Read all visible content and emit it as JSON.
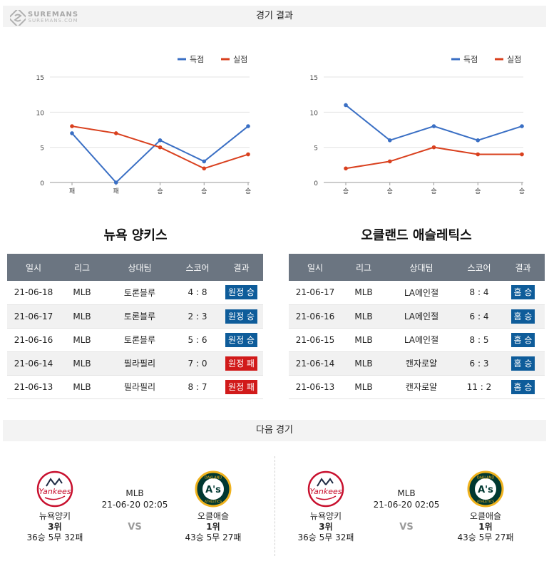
{
  "header": {
    "logo_main": "SUREMANS",
    "logo_sub": "SUREMANS.COM",
    "title": "경기 결과"
  },
  "legend": {
    "scored": "득점",
    "conceded": "실점"
  },
  "colors": {
    "scored": "#3a6fc4",
    "conceded": "#d9401e",
    "win": "#0e5c9a",
    "lose": "#d11a1a",
    "header": "#6b7581"
  },
  "chart_data": [
    {
      "type": "line",
      "categories": [
        "패",
        "패",
        "승",
        "승",
        "승"
      ],
      "series": [
        {
          "name": "득점",
          "values": [
            7,
            0,
            6,
            3,
            8
          ]
        },
        {
          "name": "실점",
          "values": [
            8,
            7,
            5,
            2,
            4
          ]
        }
      ],
      "yticks": [
        "0",
        "5",
        "10",
        "15"
      ],
      "ylim": [
        0,
        15
      ],
      "grid": true,
      "legend": "top-right"
    },
    {
      "type": "line",
      "categories": [
        "승",
        "승",
        "승",
        "승",
        "승"
      ],
      "series": [
        {
          "name": "득점",
          "values": [
            11,
            6,
            8,
            6,
            8
          ]
        },
        {
          "name": "실점",
          "values": [
            2,
            3,
            5,
            4,
            4
          ]
        }
      ],
      "yticks": [
        "0",
        "5",
        "10",
        "15"
      ],
      "ylim": [
        0,
        15
      ],
      "grid": true,
      "legend": "top-right"
    }
  ],
  "teams": {
    "left": {
      "name": "뉴욕 양키스",
      "columns": [
        "일시",
        "리그",
        "상대팀",
        "스코어",
        "결과"
      ],
      "rows": [
        {
          "date": "21-06-18",
          "league": "MLB",
          "opponent": "토론블루",
          "score": "4 : 8",
          "result": "원정 승",
          "type": "win"
        },
        {
          "date": "21-06-17",
          "league": "MLB",
          "opponent": "토론블루",
          "score": "2 : 3",
          "result": "원정 승",
          "type": "win"
        },
        {
          "date": "21-06-16",
          "league": "MLB",
          "opponent": "토론블루",
          "score": "5 : 6",
          "result": "원정 승",
          "type": "win"
        },
        {
          "date": "21-06-14",
          "league": "MLB",
          "opponent": "필라필리",
          "score": "7 : 0",
          "result": "원정 패",
          "type": "lose"
        },
        {
          "date": "21-06-13",
          "league": "MLB",
          "opponent": "필라필리",
          "score": "8 : 7",
          "result": "원정 패",
          "type": "lose"
        }
      ]
    },
    "right": {
      "name": "오클랜드 애슬레틱스",
      "columns": [
        "일시",
        "리그",
        "상대팀",
        "스코어",
        "결과"
      ],
      "rows": [
        {
          "date": "21-06-17",
          "league": "MLB",
          "opponent": "LA에인절",
          "score": "8 : 4",
          "result": "홈 승",
          "type": "win"
        },
        {
          "date": "21-06-16",
          "league": "MLB",
          "opponent": "LA에인절",
          "score": "6 : 4",
          "result": "홈 승",
          "type": "win"
        },
        {
          "date": "21-06-15",
          "league": "MLB",
          "opponent": "LA에인절",
          "score": "8 : 5",
          "result": "홈 승",
          "type": "win"
        },
        {
          "date": "21-06-14",
          "league": "MLB",
          "opponent": "캔자로얄",
          "score": "6 : 3",
          "result": "홈 승",
          "type": "win"
        },
        {
          "date": "21-06-13",
          "league": "MLB",
          "opponent": "캔자로얄",
          "score": "11 : 2",
          "result": "홈 승",
          "type": "win"
        }
      ]
    }
  },
  "next_game": {
    "title": "다음 경기",
    "matches": [
      {
        "home": {
          "name": "뉴욕양키",
          "rank": "3위",
          "record": "36승 5무 32패"
        },
        "away": {
          "name": "오클애슬",
          "rank": "1위",
          "record": "43승 5무 27패"
        },
        "league": "MLB",
        "datetime": "21-06-20 02:05",
        "vs": "VS"
      },
      {
        "home": {
          "name": "뉴욕양키",
          "rank": "3위",
          "record": "36승 5무 32패"
        },
        "away": {
          "name": "오클애슬",
          "rank": "1위",
          "record": "43승 5무 27패"
        },
        "league": "MLB",
        "datetime": "21-06-20 02:05",
        "vs": "VS"
      }
    ],
    "logo_text": {
      "yankees": "Yankees",
      "athletics_top": "OAKLAND",
      "athletics_mid": "A's",
      "athletics_bottom": "ATHLETICS"
    }
  }
}
